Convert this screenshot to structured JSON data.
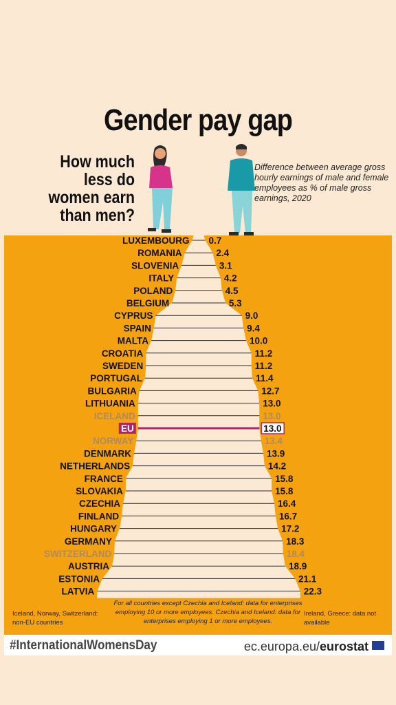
{
  "title": "Gender pay gap",
  "question": "How much less do women earn than men?",
  "description": "Difference between average gross hourly earnings of male and female employees as % of male gross earnings, 2020",
  "notes": {
    "left": "Iceland, Norway, Switzerland: non-EU countries",
    "center": "For all countries except Czechia and Iceland: data for enterprises employing 10 or more employees. Czechia and Iceland: data for enterprises employing 1 or more employees.",
    "right": "Ireland, Greece: data not available"
  },
  "footer": {
    "hashtag": "#InternationalWomensDay",
    "site": "ec.europa.eu/",
    "site_bold": "eurostat"
  },
  "colors": {
    "background": "#fce9d3",
    "panel": "#f5a210",
    "non_eu": "#b08a5a",
    "eu_highlight": "#b0246b",
    "text": "#111111"
  },
  "chart_data": {
    "type": "bar",
    "unit": "%",
    "categories": [
      "LUXEMBOURG",
      "ROMANIA",
      "SLOVENIA",
      "ITALY",
      "POLAND",
      "BELGIUM",
      "CYPRUS",
      "SPAIN",
      "MALTA",
      "CROATIA",
      "SWEDEN",
      "PORTUGAL",
      "BULGARIA",
      "LITHUANIA",
      "ICELAND",
      "EU",
      "NORWAY",
      "DENMARK",
      "NETHERLANDS",
      "FRANCE",
      "SLOVAKIA",
      "CZECHIA",
      "FINLAND",
      "HUNGARY",
      "GERMANY",
      "SWITZERLAND",
      "AUSTRIA",
      "ESTONIA",
      "LATVIA"
    ],
    "values": [
      0.7,
      2.4,
      3.1,
      4.2,
      4.5,
      5.3,
      9.0,
      9.4,
      10.0,
      11.2,
      11.2,
      11.4,
      12.7,
      13.0,
      13.0,
      13.0,
      13.4,
      13.9,
      14.2,
      15.8,
      15.8,
      16.4,
      16.7,
      17.2,
      18.3,
      18.4,
      18.9,
      21.1,
      22.3
    ],
    "labels": [
      "0.7",
      "2.4",
      "3.1",
      "4.2",
      "4.5",
      "5.3",
      "9.0",
      "9.4",
      "10.0",
      "11.2",
      "11.2",
      "11.4",
      "12.7",
      "13.0",
      "13.0",
      "13.0",
      "13.4",
      "13.9",
      "14.2",
      "15.8",
      "15.8",
      "16.4",
      "16.7",
      "17.2",
      "18.3",
      "18.4",
      "18.9",
      "21.1",
      "22.3"
    ],
    "non_eu": [
      "ICELAND",
      "NORWAY",
      "SWITZERLAND"
    ],
    "highlight": "EU"
  }
}
